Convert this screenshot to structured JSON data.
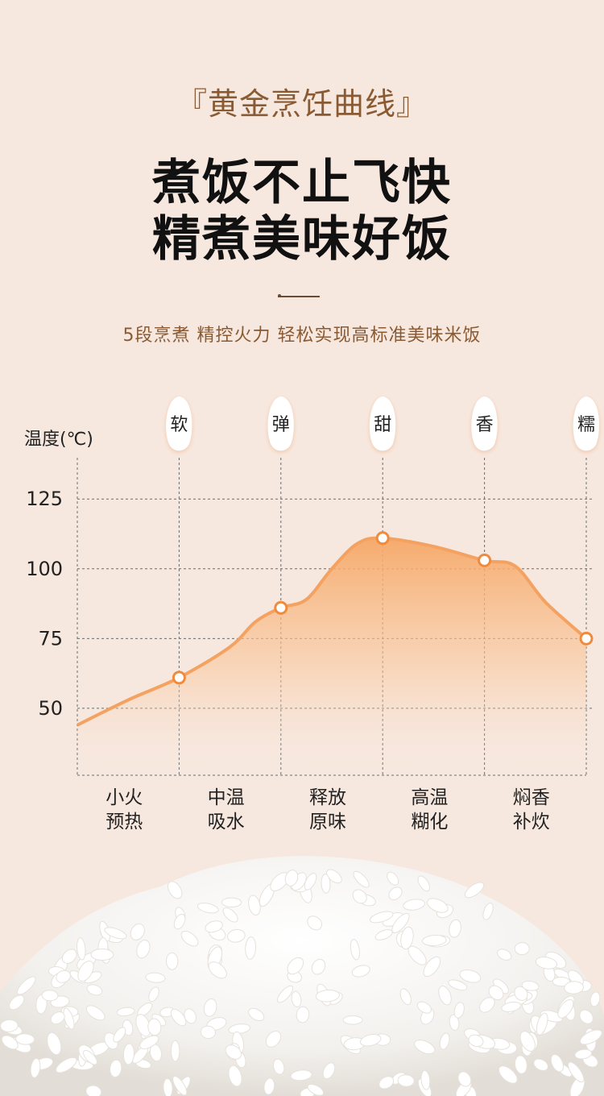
{
  "header": {
    "kicker": "『黄金烹饪曲线』",
    "headline_line1": "煮饭不止飞快",
    "headline_line2": "精煮美味好饭",
    "subtitle": "5段烹煮  精控火力  轻松实现高标准美味米饭"
  },
  "colors": {
    "curve": "#f4a261",
    "accent": "#f08a3c",
    "kicker": "#8a5a33",
    "background": "#f7e8df"
  },
  "chart_data": {
    "type": "area",
    "ylabel": "温度(℃)",
    "yticks": [
      "125",
      "100",
      "75",
      "50"
    ],
    "ytick_values": [
      125,
      100,
      75,
      50
    ],
    "ylim": [
      26,
      145
    ],
    "grid": true,
    "xlim": [
      0,
      5
    ],
    "x_markers": [
      1,
      2,
      3,
      4,
      5
    ],
    "stages": [
      {
        "line1": "小火",
        "line2": "预热"
      },
      {
        "line1": "中温",
        "line2": "吸水"
      },
      {
        "line1": "释放",
        "line2": "原味"
      },
      {
        "line1": "高温",
        "line2": "糊化"
      },
      {
        "line1": "焖香",
        "line2": "补炊"
      }
    ],
    "points": [
      {
        "label": "软",
        "x": 1,
        "y": 61
      },
      {
        "label": "弹",
        "x": 2,
        "y": 86
      },
      {
        "label": "甜",
        "x": 3,
        "y": 111
      },
      {
        "label": "香",
        "x": 4,
        "y": 103
      },
      {
        "label": "糯",
        "x": 5,
        "y": 75
      }
    ],
    "curve": [
      {
        "x": 0,
        "y": 44
      },
      {
        "x": 0.5,
        "y": 53
      },
      {
        "x": 1,
        "y": 61
      },
      {
        "x": 1.5,
        "y": 72
      },
      {
        "x": 1.75,
        "y": 81
      },
      {
        "x": 2,
        "y": 86
      },
      {
        "x": 2.25,
        "y": 89
      },
      {
        "x": 2.5,
        "y": 100
      },
      {
        "x": 2.75,
        "y": 109
      },
      {
        "x": 3,
        "y": 111
      },
      {
        "x": 3.5,
        "y": 108
      },
      {
        "x": 4,
        "y": 103
      },
      {
        "x": 4.3,
        "y": 101
      },
      {
        "x": 4.6,
        "y": 88
      },
      {
        "x": 5,
        "y": 75
      }
    ]
  }
}
